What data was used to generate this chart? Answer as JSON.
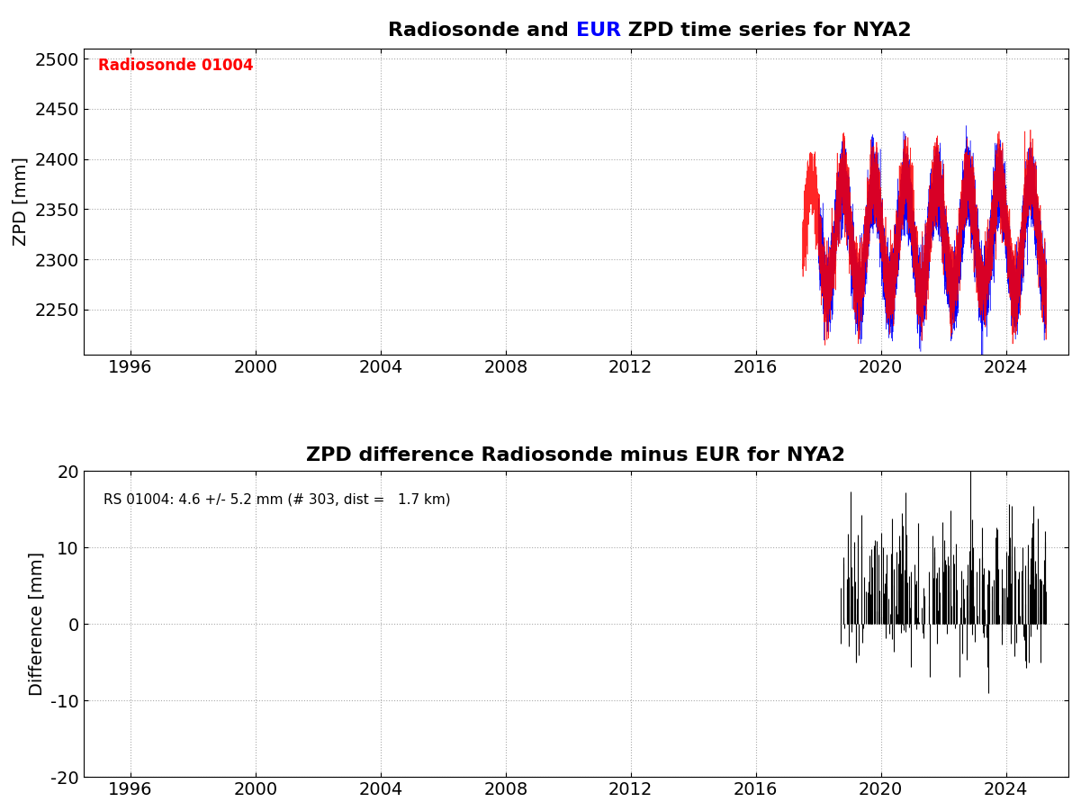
{
  "title1_part1": "Radiosonde and ",
  "title1_part2": "EUR",
  "title1_part3": " ZPD time series for NYA2",
  "title2": "ZPD difference Radiosonde minus EUR for NYA2",
  "ylabel1": "ZPD [mm]",
  "ylabel2": "Difference [mm]",
  "xlim": [
    1994.5,
    2026.0
  ],
  "ylim1": [
    2205,
    2510
  ],
  "ylim2": [
    -20,
    20
  ],
  "yticks1": [
    2250,
    2300,
    2350,
    2400,
    2450,
    2500
  ],
  "yticks2": [
    -20,
    -10,
    0,
    10,
    20
  ],
  "xticks": [
    1996,
    2000,
    2004,
    2008,
    2012,
    2016,
    2020,
    2024
  ],
  "title_fontsize": 16,
  "label_fontsize": 14,
  "tick_fontsize": 14,
  "legend_text": "Radiosonde 01004",
  "annotation_text": "RS 01004: 4.6 +/- 5.2 mm (# 303, dist =   1.7 km)",
  "blue_color": "#0000FF",
  "red_color": "#FF0000",
  "black_color": "#000000",
  "background_color": "#FFFFFF",
  "grid_color": "#AAAAAA",
  "eur_start": 2018.0,
  "eur_end": 2025.3,
  "rs_start": 2017.5,
  "rs_end": 2025.3,
  "diff_start": 2018.7,
  "diff_end": 2025.3,
  "n_diff": 303,
  "diff_mean": 4.6,
  "diff_std": 5.2,
  "zpd_mean": 2320,
  "zpd_amplitude": 55,
  "zpd_noise": 18
}
